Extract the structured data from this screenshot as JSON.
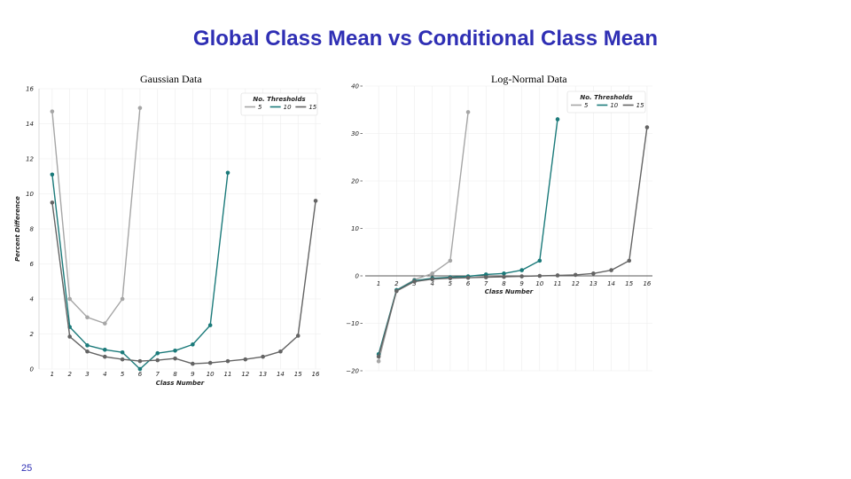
{
  "slide": {
    "title": "Global Class Mean vs Conditional Class Mean",
    "page_number": "25"
  },
  "colors": {
    "title": "#2f2fb4",
    "series_5": "#a6a6a6",
    "series_10": "#1b7a7a",
    "series_15": "#646464",
    "grid": "#ececec"
  },
  "chart_data": [
    {
      "type": "line",
      "title": "Gaussian Data",
      "xlabel": "Class Number",
      "ylabel": "Percent Difference",
      "xlim": [
        0.25,
        16.3
      ],
      "ylim": [
        0,
        16
      ],
      "yticks": [
        0,
        2,
        4,
        6,
        8,
        10,
        12,
        14,
        16
      ],
      "xticks": [
        1,
        2,
        3,
        4,
        5,
        6,
        7,
        8,
        9,
        10,
        11,
        12,
        13,
        14,
        15,
        16
      ],
      "legend": {
        "title": "No. Thresholds",
        "position": "top-right"
      },
      "series": [
        {
          "name": "5",
          "x": [
            1,
            2,
            3,
            4,
            5,
            6
          ],
          "values": [
            14.7,
            4.0,
            2.95,
            2.6,
            4.0,
            14.9
          ]
        },
        {
          "name": "10",
          "x": [
            1,
            2,
            3,
            4,
            5,
            6,
            7,
            8,
            9,
            10,
            11
          ],
          "values": [
            11.1,
            2.4,
            1.35,
            1.1,
            0.95,
            0.0,
            0.9,
            1.05,
            1.4,
            2.5,
            11.2
          ]
        },
        {
          "name": "15",
          "x": [
            1,
            2,
            3,
            4,
            5,
            6,
            7,
            8,
            9,
            10,
            11,
            12,
            13,
            14,
            15,
            16
          ],
          "values": [
            9.5,
            1.85,
            1.0,
            0.7,
            0.55,
            0.45,
            0.5,
            0.6,
            0.3,
            0.35,
            0.45,
            0.55,
            0.7,
            1.0,
            1.9,
            9.6
          ]
        }
      ]
    },
    {
      "type": "line",
      "title": "Log-Normal Data",
      "xlabel": "Class Number",
      "ylabel": "",
      "xlim": [
        0.25,
        16.3
      ],
      "ylim": [
        -20,
        40
      ],
      "yticks": [
        -20,
        -10,
        0,
        10,
        20,
        30,
        40
      ],
      "ytick_labels": [
        "−20",
        "−10",
        "0",
        "10",
        "20",
        "30",
        "40"
      ],
      "xticks": [
        1,
        2,
        3,
        4,
        5,
        6,
        7,
        8,
        9,
        10,
        11,
        12,
        13,
        14,
        15,
        16
      ],
      "legend": {
        "title": "No. Thresholds",
        "position": "top-right"
      },
      "series": [
        {
          "name": "5",
          "x": [
            1,
            2,
            3,
            4,
            5,
            6
          ],
          "values": [
            -18.0,
            -3.0,
            -0.8,
            0.5,
            3.2,
            34.5
          ]
        },
        {
          "name": "10",
          "x": [
            1,
            2,
            3,
            4,
            5,
            6,
            7,
            8,
            9,
            10,
            11
          ],
          "values": [
            -16.5,
            -3.0,
            -1.0,
            -0.5,
            -0.3,
            -0.1,
            0.3,
            0.5,
            1.2,
            3.2,
            33.0
          ]
        },
        {
          "name": "15",
          "x": [
            1,
            2,
            3,
            4,
            5,
            6,
            7,
            8,
            9,
            10,
            11,
            12,
            13,
            14,
            15,
            16
          ],
          "values": [
            -17.0,
            -3.2,
            -1.2,
            -0.7,
            -0.5,
            -0.4,
            -0.3,
            -0.2,
            -0.1,
            0.0,
            0.1,
            0.2,
            0.5,
            1.2,
            3.2,
            31.3
          ]
        }
      ]
    }
  ]
}
